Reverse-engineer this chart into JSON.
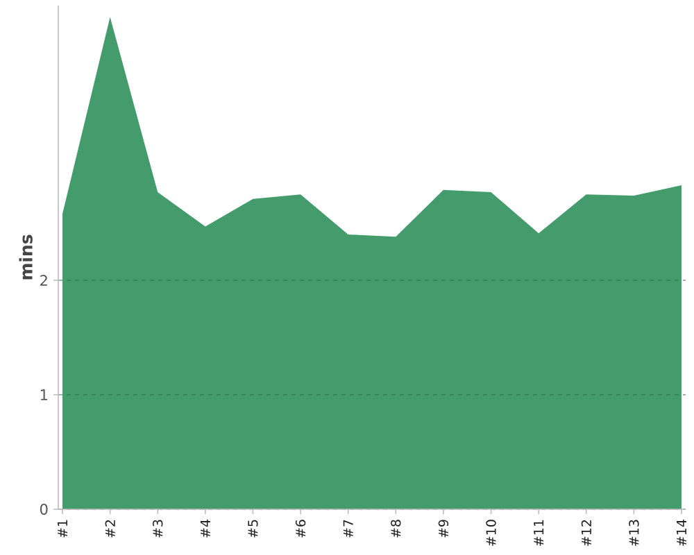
{
  "chart_data": {
    "type": "area",
    "ylabel": "mins",
    "categories": [
      "#1",
      "#2",
      "#3",
      "#4",
      "#5",
      "#6",
      "#7",
      "#8",
      "#9",
      "#10",
      "#11",
      "#12",
      "#13",
      "#14"
    ],
    "values": [
      2.58,
      4.3,
      2.77,
      2.47,
      2.71,
      2.75,
      2.4,
      2.38,
      2.79,
      2.77,
      2.41,
      2.75,
      2.74,
      2.83
    ],
    "color": "#449c6c",
    "ylim": [
      0,
      4.4
    ],
    "yticks": [
      0,
      1,
      2
    ],
    "grid": "y"
  }
}
